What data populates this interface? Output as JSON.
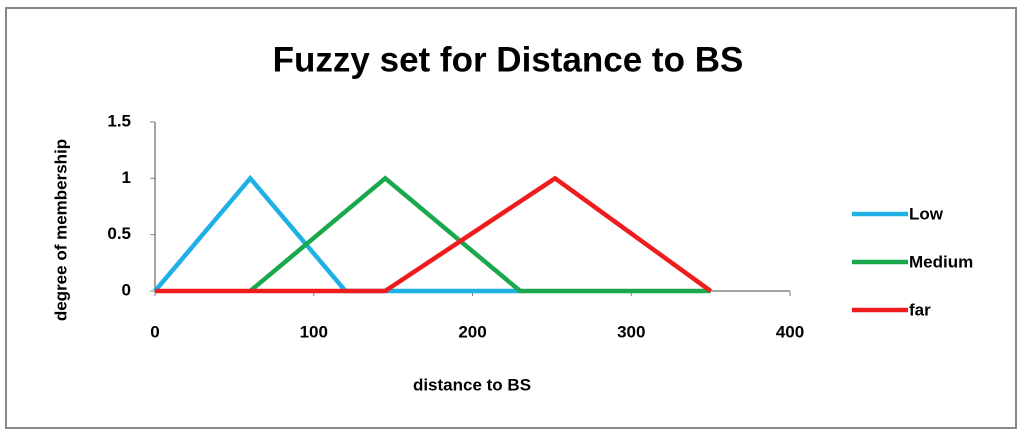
{
  "chart_data": {
    "type": "line",
    "title": "Fuzzy set for Distance to BS",
    "x_label": "distance to BS",
    "y_label": "degree of membership",
    "series": [
      {
        "name": "Low",
        "color": "#1fb1e6",
        "x": [
          0,
          60,
          120,
          230
        ],
        "values": [
          0,
          1,
          0,
          0
        ]
      },
      {
        "name": "Medium",
        "color": "#19a84b",
        "x": [
          60,
          145,
          230,
          350
        ],
        "values": [
          0,
          1,
          0,
          0
        ]
      },
      {
        "name": "far",
        "color": "#ee1c1c",
        "x": [
          0,
          145,
          252,
          350
        ],
        "values": [
          0,
          0,
          1,
          0
        ]
      }
    ],
    "xlim": [
      0,
      400
    ],
    "xticks": [
      0,
      100,
      200,
      300,
      400
    ],
    "ylim": [
      0,
      1.5
    ],
    "yticks": [
      0,
      0.5,
      1,
      1.5
    ],
    "grid": false,
    "legend": "right"
  }
}
